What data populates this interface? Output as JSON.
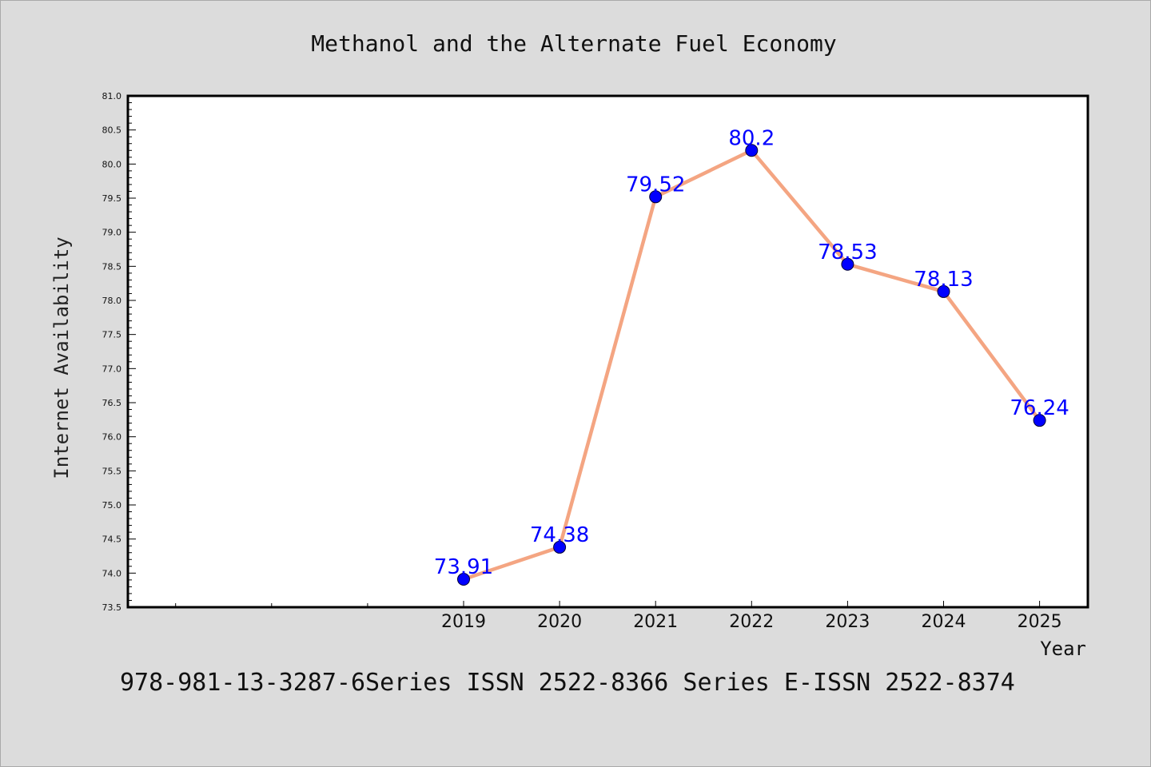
{
  "chart_data": {
    "type": "line",
    "title": "Methanol and the Alternate Fuel Economy",
    "xlabel": "Year",
    "ylabel": "Internet Availability",
    "categories": [
      "2019",
      "2020",
      "2021",
      "2022",
      "2023",
      "2024",
      "2025"
    ],
    "series": [
      {
        "values": [
          73.91,
          74.38,
          79.52,
          80.2,
          78.53,
          78.13,
          76.24
        ]
      }
    ],
    "data_labels": [
      "73.91",
      "74.38",
      "79.52",
      "80.2",
      "78.53",
      "78.13",
      "76.24"
    ],
    "ylim": [
      73.5,
      81.0
    ],
    "yticks": [
      "73.5",
      "74.0",
      "74.5",
      "75.0",
      "75.5",
      "76.0",
      "76.5",
      "77.0",
      "77.5",
      "78.0",
      "78.5",
      "79.0",
      "79.5",
      "80.0",
      "80.5",
      "81.0"
    ],
    "grid": false,
    "legend": "none",
    "colors": {
      "line": "#f4a582",
      "marker": "#0000ff",
      "label": "#0000ff",
      "background": "#dcdcdc",
      "plot_bg": "#ffffff"
    }
  },
  "footnote": "978-981-13-3287-6Series ISSN 2522-8366 Series E-ISSN 2522-8374"
}
